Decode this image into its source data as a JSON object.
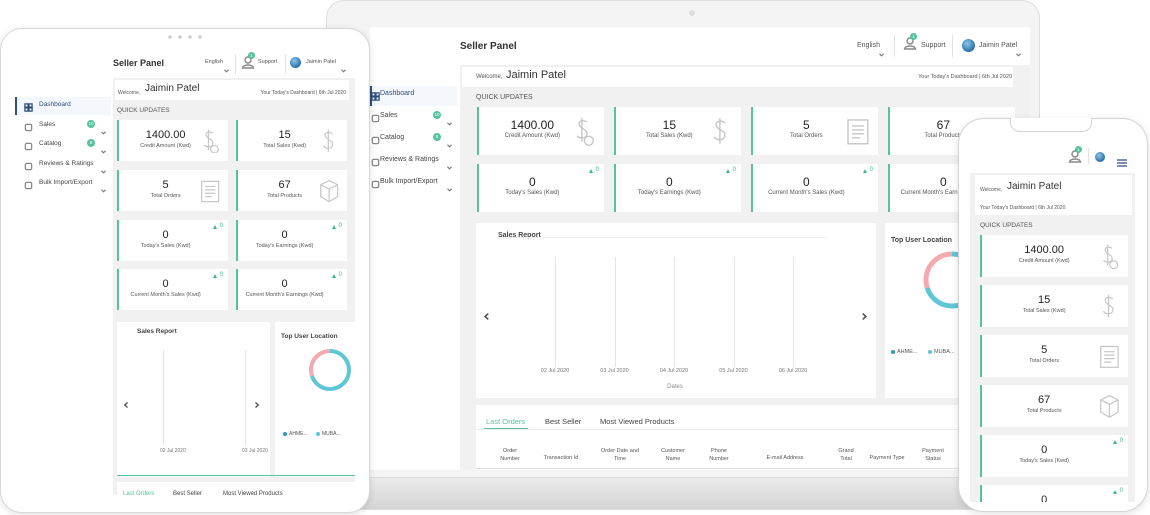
{
  "header": {
    "title": "Seller Panel",
    "language": "English",
    "support": "Support",
    "support_badge": "1",
    "user": "Jaimin Patel"
  },
  "welcome": {
    "greeting": "Welcome,",
    "name": "Jaimin Patel",
    "note": "Your Today's Dashboard | 6th Jul 2020"
  },
  "menu": [
    {
      "label": "Dashboard"
    },
    {
      "label": "Sales",
      "badge": "10"
    },
    {
      "label": "Catalog",
      "badge": "8"
    },
    {
      "label": "Reviews & Ratings"
    },
    {
      "label": "Bulk Import/Export"
    }
  ],
  "quick_updates": "QUICK UPDATES",
  "cards": [
    {
      "value": "1400.00",
      "label": "Credit Amount (Kwd)"
    },
    {
      "value": "15",
      "label": "Total Sales (Kwd)"
    },
    {
      "value": "5",
      "label": "Total Orders"
    },
    {
      "value": "67",
      "label": "Total Products"
    },
    {
      "value": "0",
      "label": "Today's Sales (Kwd)",
      "change": "0"
    },
    {
      "value": "0",
      "label": "Today's Earnings (Kwd)",
      "change": "0"
    },
    {
      "value": "0",
      "label": "Current Month's Sales (Kwd)",
      "change": "0"
    },
    {
      "value": "0",
      "label": "Current Month's Earnings (Kwd)",
      "change": "0"
    }
  ],
  "sales_report": {
    "title": "Sales Report",
    "dates": [
      "02 Jul 2020",
      "03 Jul 2020",
      "04 Jul 2020",
      "05 Jul 2020",
      "06 Jul 2020"
    ],
    "axis_label": "Dates"
  },
  "top_user_location": {
    "title": "Top User Location",
    "legend": [
      "AHME...",
      "MUBA..."
    ]
  },
  "tabs": [
    "Last Orders",
    "Best Seller",
    "Most Viewed Products"
  ],
  "table_columns": [
    "Order Number",
    "Transaction Id",
    "Order Date and Time",
    "Customer Name",
    "Phone Number",
    "E-mail Address",
    "Grand Total",
    "Payment Type",
    "Payment Status"
  ]
}
